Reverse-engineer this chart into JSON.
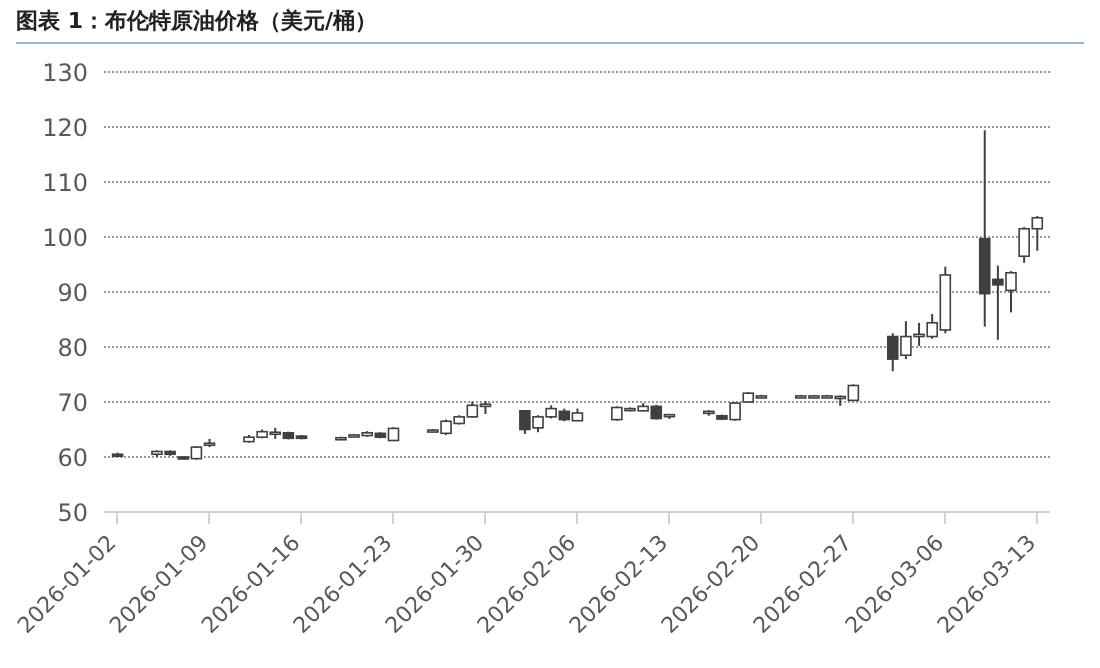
{
  "chart_data": {
    "type": "candlestick",
    "title": "图表 1：布伦特原油价格（美元/桶）",
    "x": [
      "2026-01-02",
      "2026-01-05",
      "2026-01-06",
      "2026-01-07",
      "2026-01-08",
      "2026-01-09",
      "2026-01-12",
      "2026-01-13",
      "2026-01-14",
      "2026-01-15",
      "2026-01-16",
      "2026-01-19",
      "2026-01-20",
      "2026-01-21",
      "2026-01-22",
      "2026-01-23",
      "2026-01-26",
      "2026-01-27",
      "2026-01-28",
      "2026-01-29",
      "2026-01-30",
      "2026-02-02",
      "2026-02-03",
      "2026-02-04",
      "2026-02-05",
      "2026-02-06",
      "2026-02-09",
      "2026-02-10",
      "2026-02-11",
      "2026-02-12",
      "2026-02-13",
      "2026-02-16",
      "2026-02-17",
      "2026-02-18",
      "2026-02-19",
      "2026-02-20",
      "2026-02-23",
      "2026-02-24",
      "2026-02-25",
      "2026-02-26",
      "2026-02-27",
      "2026-03-02",
      "2026-03-03",
      "2026-03-04",
      "2026-03-05",
      "2026-03-06",
      "2026-03-09",
      "2026-03-10",
      "2026-03-11",
      "2026-03-12",
      "2026-03-13"
    ],
    "ohlc": [
      [
        60.5,
        60.8,
        60.1,
        60.4
      ],
      [
        60.5,
        61.2,
        60.0,
        61.0
      ],
      [
        61.0,
        61.2,
        60.2,
        60.5
      ],
      [
        60.0,
        60.1,
        59.6,
        59.8
      ],
      [
        59.7,
        62.0,
        59.5,
        61.8
      ],
      [
        62.3,
        63.3,
        61.8,
        62.5
      ],
      [
        62.8,
        64.0,
        62.6,
        63.6
      ],
      [
        63.6,
        65.0,
        63.4,
        64.6
      ],
      [
        64.4,
        65.3,
        63.3,
        64.5
      ],
      [
        64.4,
        64.6,
        63.2,
        63.4
      ],
      [
        63.8,
        64.0,
        63.2,
        63.4
      ],
      [
        63.4,
        63.7,
        63.2,
        63.5
      ],
      [
        63.9,
        64.2,
        63.7,
        64.0
      ],
      [
        63.9,
        64.7,
        63.7,
        64.4
      ],
      [
        64.3,
        64.5,
        63.4,
        63.6
      ],
      [
        63.0,
        65.4,
        62.9,
        65.2
      ],
      [
        64.8,
        65.1,
        64.5,
        64.9
      ],
      [
        64.3,
        66.8,
        64.0,
        66.5
      ],
      [
        66.1,
        67.6,
        65.9,
        67.3
      ],
      [
        67.3,
        70.1,
        67.1,
        69.4
      ],
      [
        69.2,
        70.2,
        67.8,
        69.6
      ],
      [
        68.4,
        68.5,
        64.2,
        65.0
      ],
      [
        65.3,
        67.6,
        64.5,
        67.3
      ],
      [
        67.3,
        69.4,
        67.0,
        68.8
      ],
      [
        68.3,
        68.8,
        66.5,
        66.8
      ],
      [
        66.6,
        68.8,
        66.5,
        68.0
      ],
      [
        66.8,
        69.2,
        66.6,
        69.0
      ],
      [
        68.6,
        69.0,
        68.3,
        68.8
      ],
      [
        68.4,
        69.8,
        68.3,
        69.2
      ],
      [
        69.2,
        69.5,
        66.8,
        67.0
      ],
      [
        67.6,
        67.8,
        66.9,
        67.7
      ],
      [
        68.1,
        68.5,
        67.5,
        68.3
      ],
      [
        67.5,
        67.7,
        66.7,
        66.9
      ],
      [
        66.8,
        70.0,
        66.6,
        69.8
      ],
      [
        70.0,
        71.8,
        69.9,
        71.6
      ],
      [
        71.0,
        71.3,
        70.8,
        71.1
      ],
      [
        71.0,
        71.3,
        70.8,
        71.1
      ],
      [
        71.0,
        71.3,
        70.8,
        71.1
      ],
      [
        71.0,
        71.3,
        70.8,
        71.1
      ],
      [
        70.8,
        71.2,
        69.3,
        71.0
      ],
      [
        70.3,
        73.2,
        70.2,
        73.0
      ],
      [
        81.9,
        82.5,
        75.6,
        77.8
      ],
      [
        78.5,
        84.7,
        77.8,
        81.9
      ],
      [
        81.9,
        84.4,
        80.2,
        82.3
      ],
      [
        81.9,
        86.0,
        81.5,
        84.4
      ],
      [
        83.1,
        94.6,
        82.5,
        93.1
      ],
      [
        99.7,
        119.4,
        83.7,
        89.7
      ],
      [
        92.3,
        94.8,
        81.3,
        91.3
      ],
      [
        90.3,
        93.8,
        86.3,
        93.5
      ],
      [
        96.5,
        101.8,
        95.3,
        101.5
      ],
      [
        101.5,
        103.8,
        97.5,
        103.5
      ]
    ],
    "color": "#404040",
    "xlim": [
      "2026-01-01",
      "2026-03-14"
    ],
    "xticks": [
      "2026-01-02",
      "2026-01-09",
      "2026-01-16",
      "2026-01-23",
      "2026-01-30",
      "2026-02-06",
      "2026-02-13",
      "2026-02-20",
      "2026-02-27",
      "2026-03-06",
      "2026-03-13"
    ],
    "ylim": [
      50,
      130
    ],
    "yticks": [
      50,
      60,
      70,
      80,
      90,
      100,
      110,
      120,
      130
    ],
    "grid": "y"
  }
}
